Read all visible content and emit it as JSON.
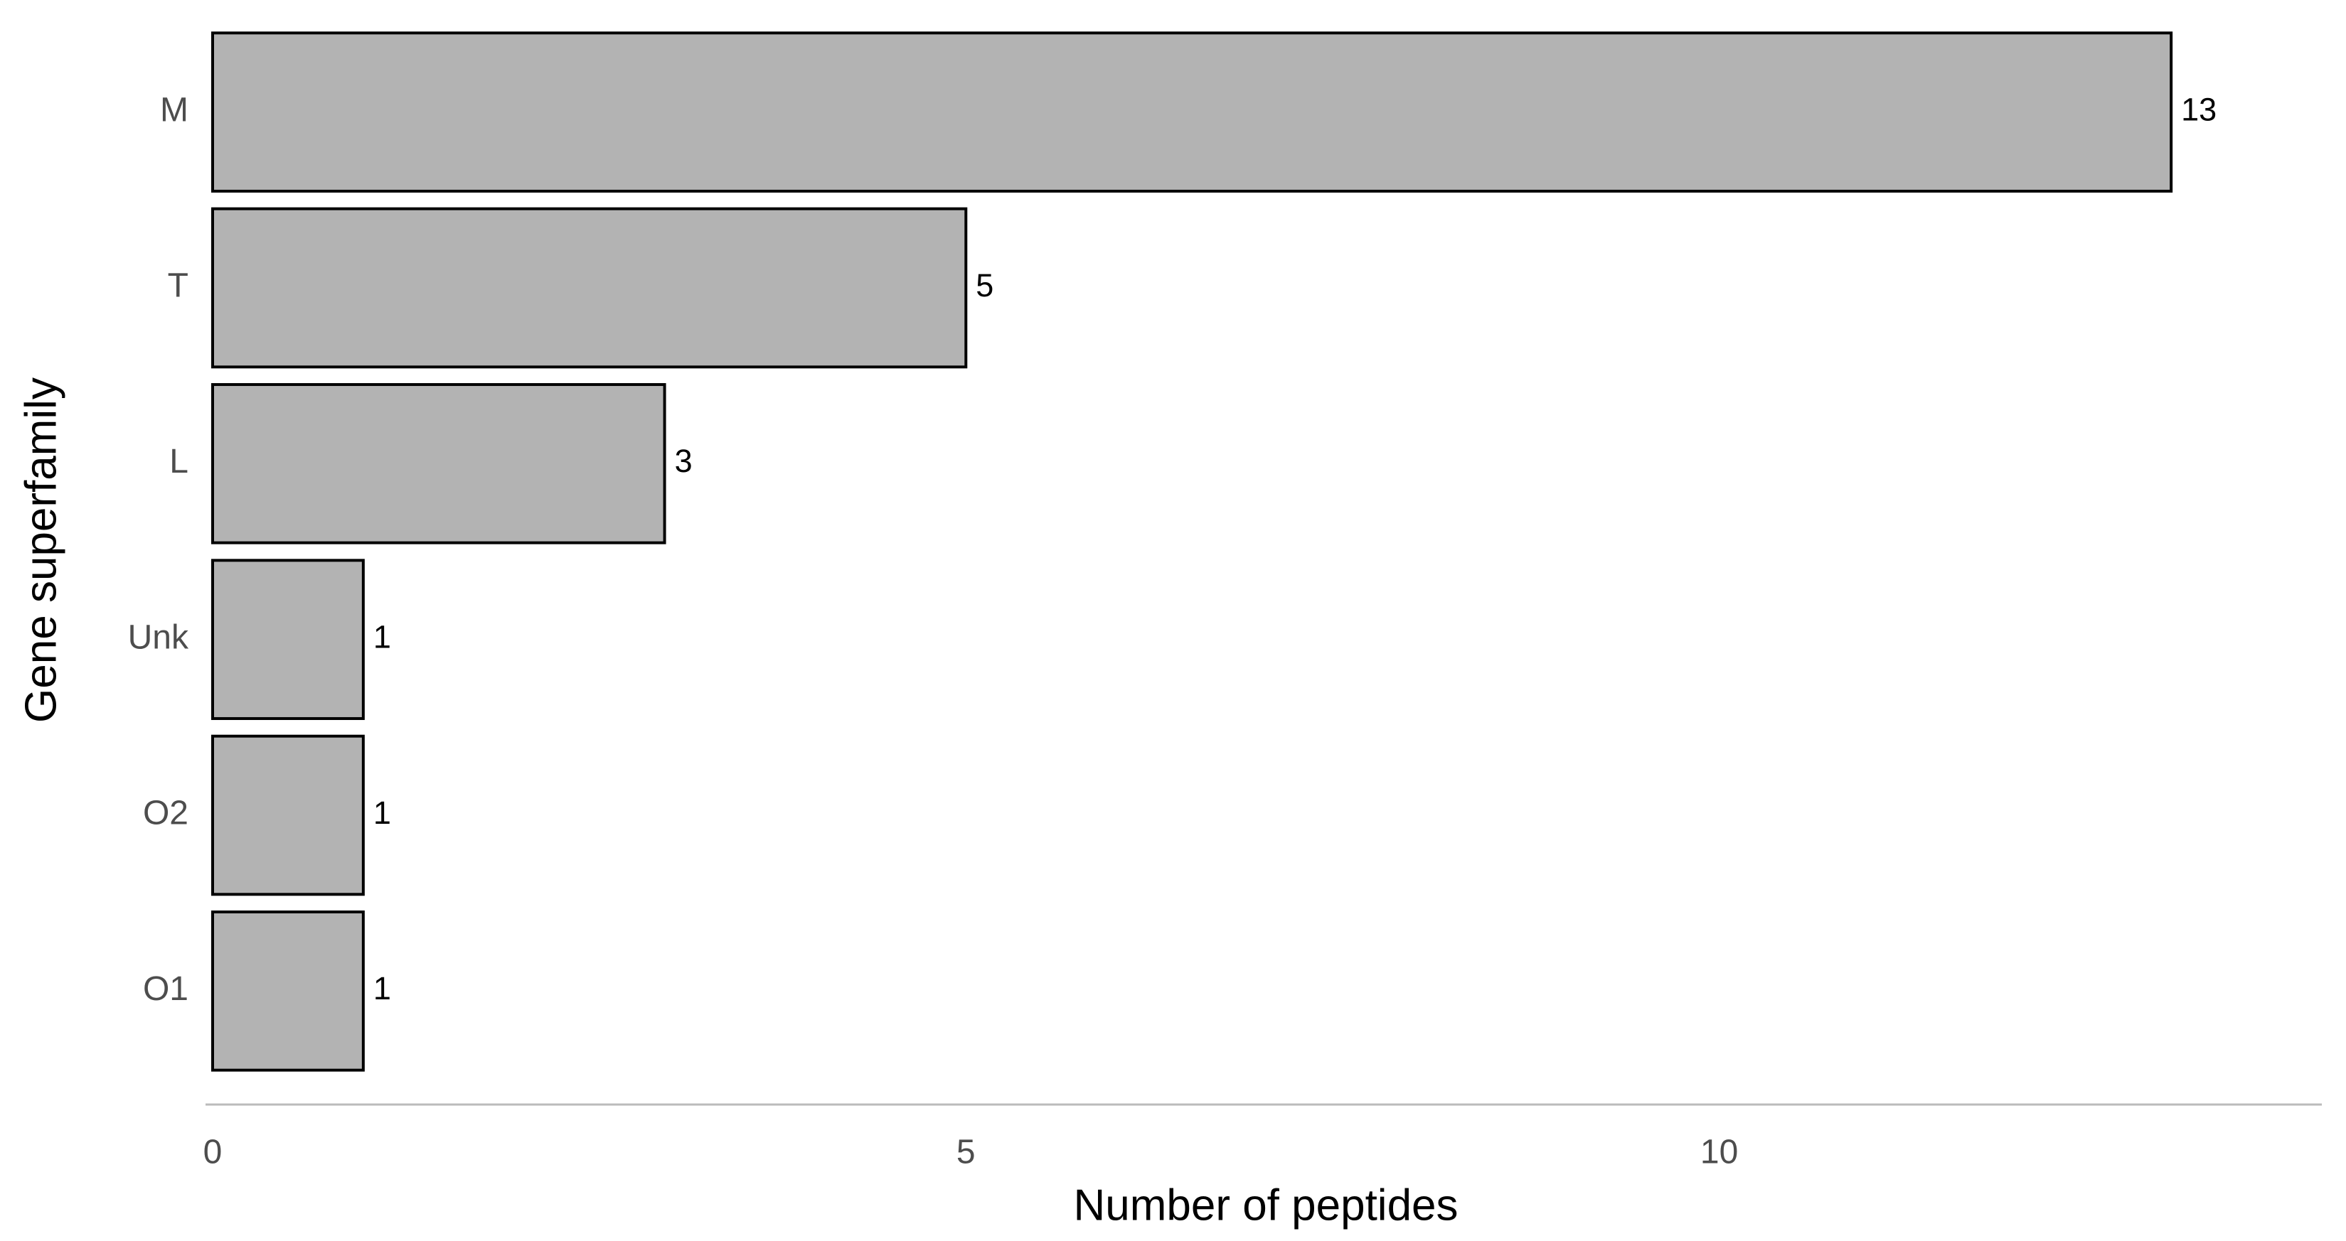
{
  "chart_data": {
    "type": "barh",
    "xlabel": "Number of peptides",
    "ylabel": "Gene superfamily",
    "categories": [
      "M",
      "T",
      "L",
      "Unk",
      "O2",
      "O1"
    ],
    "values": [
      13,
      5,
      3,
      1,
      1,
      1
    ],
    "color": "#b3b3b3",
    "xlim": [
      0,
      14
    ],
    "xticks": [
      0,
      5,
      10
    ],
    "grid": false
  }
}
